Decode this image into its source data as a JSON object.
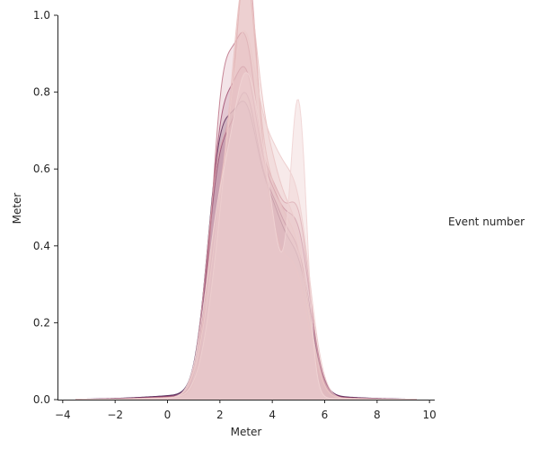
{
  "chart_data": {
    "type": "area",
    "subtype": "kde-overlay",
    "xlabel": "Meter",
    "ylabel": "Meter",
    "legend_title": "Event number",
    "legend_placement": "right",
    "xlim": [
      -4.2,
      10.2
    ],
    "ylim": [
      0,
      1.0
    ],
    "x_ticks": [
      -4,
      -2,
      0,
      2,
      4,
      6,
      8,
      10
    ],
    "x_tick_labels": [
      "−4",
      "−2",
      "0",
      "2",
      "4",
      "6",
      "8",
      "10"
    ],
    "y_ticks": [
      0,
      0.2,
      0.4,
      0.6,
      0.8,
      1.0
    ],
    "y_tick_labels": [
      "0.0",
      "0.2",
      "0.4",
      "0.6",
      "0.8",
      "1.0"
    ],
    "grid": false,
    "series": [
      {
        "color": "#3d1f4f",
        "fill_opacity": 0.15,
        "peaks": [
          {
            "x": 2.0,
            "h": 0.58,
            "w": 0.5
          },
          {
            "x": 3.0,
            "h": 0.62,
            "w": 0.5
          },
          {
            "x": 4.0,
            "h": 0.38,
            "w": 0.5
          },
          {
            "x": 5.0,
            "h": 0.3,
            "w": 0.5
          }
        ],
        "tail_h": 0.02
      },
      {
        "color": "#6b2b5e",
        "fill_opacity": 0.15,
        "peaks": [
          {
            "x": 2.0,
            "h": 0.55,
            "w": 0.5
          },
          {
            "x": 3.0,
            "h": 0.65,
            "w": 0.48
          },
          {
            "x": 4.0,
            "h": 0.4,
            "w": 0.5
          },
          {
            "x": 5.0,
            "h": 0.32,
            "w": 0.5
          }
        ],
        "tail_h": 0.018
      },
      {
        "color": "#9c4a6f",
        "fill_opacity": 0.18,
        "peaks": [
          {
            "x": 2.05,
            "h": 0.62,
            "w": 0.48
          },
          {
            "x": 3.0,
            "h": 0.7,
            "w": 0.48
          },
          {
            "x": 4.0,
            "h": 0.42,
            "w": 0.5
          },
          {
            "x": 5.0,
            "h": 0.38,
            "w": 0.48
          }
        ],
        "tail_h": 0.015
      },
      {
        "color": "#c17a8d",
        "fill_opacity": 0.2,
        "peaks": [
          {
            "x": 2.1,
            "h": 0.72,
            "w": 0.45
          },
          {
            "x": 3.0,
            "h": 0.78,
            "w": 0.45
          },
          {
            "x": 4.0,
            "h": 0.46,
            "w": 0.48
          },
          {
            "x": 5.0,
            "h": 0.43,
            "w": 0.45
          }
        ],
        "tail_h": 0.012
      },
      {
        "color": "#d9a0a8",
        "fill_opacity": 0.25,
        "peaks": [
          {
            "x": 2.0,
            "h": 0.6,
            "w": 0.5
          },
          {
            "x": 3.0,
            "h": 0.95,
            "w": 0.4
          },
          {
            "x": 3.8,
            "h": 0.4,
            "w": 0.5
          },
          {
            "x": 4.9,
            "h": 0.3,
            "w": 0.5
          }
        ],
        "tail_h": 0.01
      },
      {
        "color": "#e3b6b6",
        "fill_opacity": 0.3,
        "peaks": [
          {
            "x": 2.1,
            "h": 0.5,
            "w": 0.55
          },
          {
            "x": 3.0,
            "h": 0.88,
            "w": 0.42
          },
          {
            "x": 3.9,
            "h": 0.45,
            "w": 0.5
          },
          {
            "x": 4.9,
            "h": 0.35,
            "w": 0.5
          }
        ],
        "tail_h": 0.01
      },
      {
        "color": "#e9c2c2",
        "fill_opacity": 0.35,
        "peaks": [
          {
            "x": 2.2,
            "h": 0.48,
            "w": 0.6
          },
          {
            "x": 3.0,
            "h": 0.8,
            "w": 0.45
          },
          {
            "x": 3.9,
            "h": 0.5,
            "w": 0.5
          },
          {
            "x": 4.9,
            "h": 0.38,
            "w": 0.5
          }
        ],
        "tail_h": 0.008
      },
      {
        "color": "#eccbcb",
        "fill_opacity": 0.4,
        "peaks": [
          {
            "x": 2.3,
            "h": 0.45,
            "w": 0.6
          },
          {
            "x": 3.0,
            "h": 0.62,
            "w": 0.5
          },
          {
            "x": 4.0,
            "h": 0.52,
            "w": 0.55
          },
          {
            "x": 5.0,
            "h": 0.42,
            "w": 0.5
          }
        ],
        "tail_h": 0.008
      },
      {
        "color": "#f0d4d4",
        "fill_opacity": 0.45,
        "peaks": [
          {
            "x": 2.0,
            "h": 0.45,
            "w": 0.55
          },
          {
            "x": 3.0,
            "h": 0.68,
            "w": 0.5
          },
          {
            "x": 3.9,
            "h": 0.4,
            "w": 0.5
          },
          {
            "x": 5.0,
            "h": 0.74,
            "w": 0.32
          }
        ],
        "tail_h": 0.006
      }
    ]
  }
}
